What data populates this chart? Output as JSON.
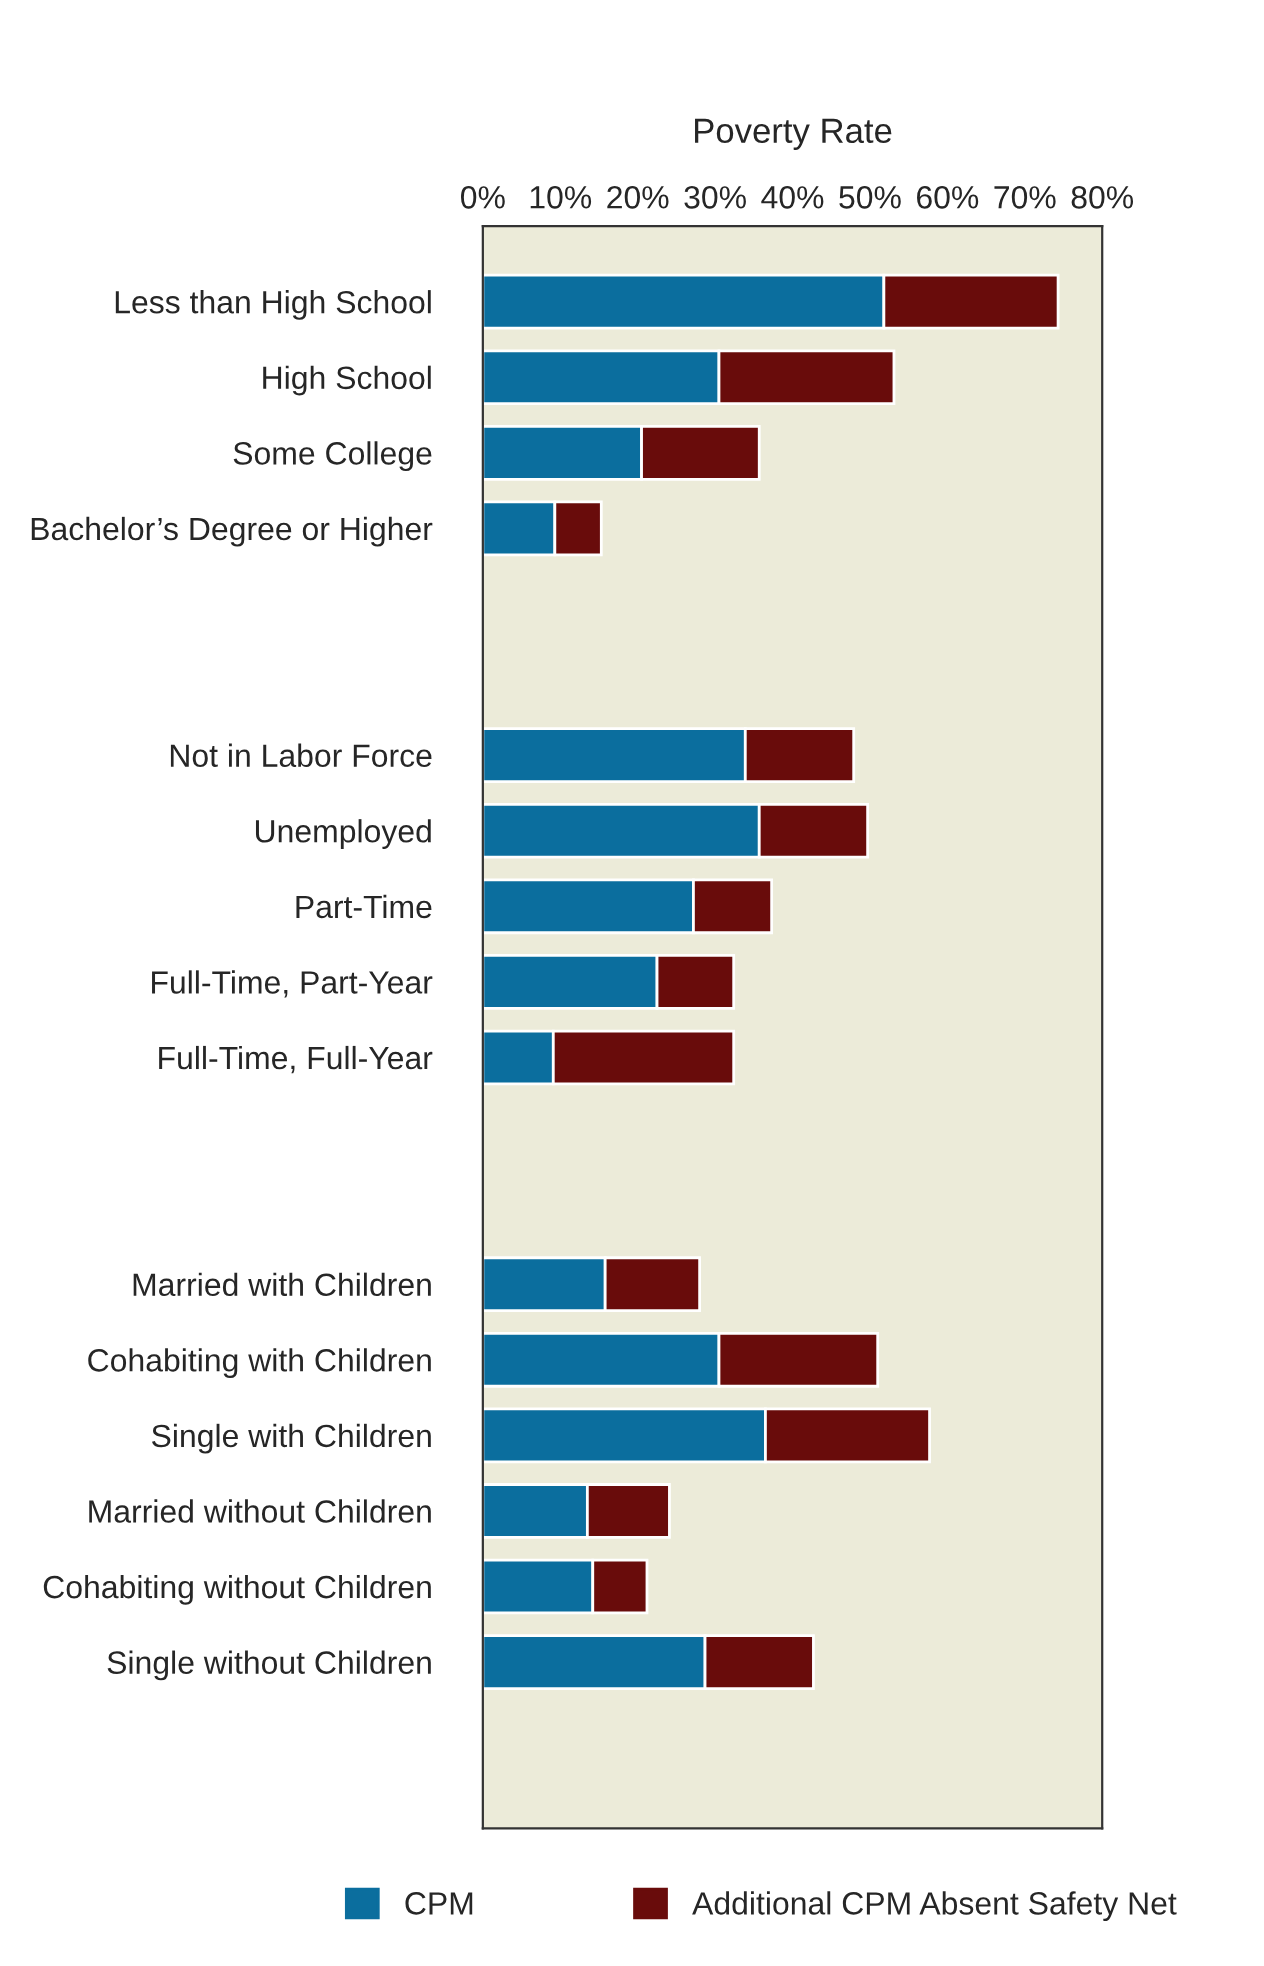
{
  "chart_data": {
    "type": "bar",
    "orientation": "horizontal",
    "stacked": true,
    "title": "Poverty Rate",
    "categories": [
      "Less than High School",
      "High School",
      "Some College",
      "Bachelor’s Degree or Higher",
      null,
      null,
      "Not in Labor Force",
      "Unemployed",
      "Part-Time",
      "Full-Time, Part-Year",
      "Full-Time, Full-Year",
      null,
      null,
      "Married with Children",
      "Cohabiting with Children",
      "Single with Children",
      "Married without Children",
      "Cohabiting without Children",
      "Single without Children"
    ],
    "series": [
      {
        "name": "CPM",
        "color": "#0b6e9e",
        "values": [
          51.8,
          30.5,
          20.5,
          9.3,
          null,
          null,
          33.9,
          35.7,
          27.2,
          22.5,
          9.1,
          null,
          null,
          15.8,
          30.5,
          36.5,
          13.5,
          14.2,
          28.7
        ]
      },
      {
        "name": "Additional CPM Absent Safety Net",
        "color": "#690c0b",
        "values": [
          22.5,
          22.6,
          15.2,
          6.0,
          null,
          null,
          14.0,
          14.0,
          10.1,
          9.9,
          23.3,
          null,
          null,
          12.2,
          20.5,
          21.2,
          10.6,
          7.0,
          14.0
        ]
      }
    ],
    "xlim": [
      0,
      80
    ],
    "xticks": [
      {
        "value": 0,
        "label": "0%"
      },
      {
        "value": 10,
        "label": "10%"
      },
      {
        "value": 20,
        "label": "20%"
      },
      {
        "value": 30,
        "label": "30%"
      },
      {
        "value": 40,
        "label": "40%"
      },
      {
        "value": 50,
        "label": "50%"
      },
      {
        "value": 60,
        "label": "60%"
      },
      {
        "value": 70,
        "label": "70%"
      },
      {
        "value": 80,
        "label": "80%"
      }
    ],
    "grid": false,
    "legend": "bottom"
  }
}
